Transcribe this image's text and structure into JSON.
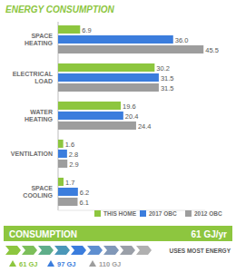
{
  "chart_data": {
    "type": "bar",
    "title": "ENERGY CONSUMPTION",
    "orientation": "horizontal",
    "categories": [
      "SPACE HEATING",
      "ELECTRICAL LOAD",
      "WATER HEATING",
      "VENTILATION",
      "SPACE COOLING"
    ],
    "series": [
      {
        "name": "THIS HOME",
        "color": "#8dc63f",
        "values": [
          6.9,
          30.2,
          19.6,
          1.6,
          1.7
        ],
        "value_labels": [
          "6.9",
          "30.2",
          "19.6",
          "1.6",
          "1.7"
        ]
      },
      {
        "name": "2017 OBC",
        "color": "#3b7ddd",
        "values": [
          36.0,
          31.5,
          20.4,
          2.8,
          6.2
        ],
        "value_labels": [
          "36.0",
          "31.5",
          "20.4",
          "2.8",
          "6.2"
        ]
      },
      {
        "name": "2012 OBC",
        "color": "#9d9d9d",
        "values": [
          45.5,
          31.5,
          24.4,
          2.9,
          6.1
        ],
        "value_labels": [
          "45.5",
          "31.5",
          "24.4",
          "2.9",
          "6.1"
        ]
      }
    ],
    "xlim": [
      0,
      46
    ],
    "tick_labels": false,
    "data_labels": true,
    "grid": false,
    "legend": "lower right"
  },
  "consumption": {
    "label": "CONSUMPTION",
    "value": "61 GJ/yr"
  },
  "energy_scale": {
    "label": "USES MOST ENERGY",
    "markers": [
      {
        "label": "61 GJ",
        "color": "#8dc63f"
      },
      {
        "label": "97 GJ",
        "color": "#3b7ddd"
      },
      {
        "label": "110 GJ",
        "color": "#9d9d9d"
      }
    ]
  }
}
